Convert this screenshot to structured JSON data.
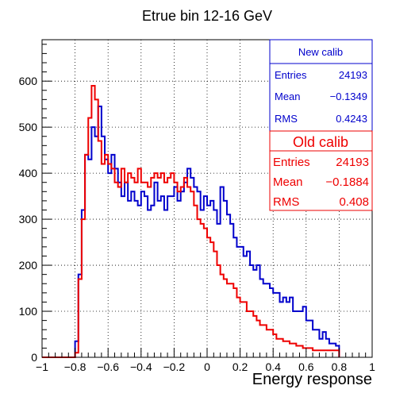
{
  "chart_data": {
    "type": "histogram",
    "title": "Etrue bin 12-16 GeV",
    "xlabel": "Energy response",
    "ylabel": "",
    "xlim": [
      -1,
      1
    ],
    "ylim": [
      0,
      690
    ],
    "grid": true,
    "x_ticks": [
      "−1",
      "−0.8",
      "−0.6",
      "−0.4",
      "−0.2",
      "0",
      "0.2",
      "0.4",
      "0.6",
      "0.8",
      "1"
    ],
    "y_ticks": [
      "0",
      "100",
      "200",
      "300",
      "400",
      "500",
      "600"
    ],
    "bin_width": 0.02,
    "series": [
      {
        "name": "New calib",
        "color": "#0000cc",
        "stats": {
          "Entries": "24193",
          "Mean": "−0.1349",
          "RMS": "0.4243"
        },
        "values": [
          0,
          0,
          0,
          0,
          0,
          0,
          0,
          0,
          0,
          0,
          35,
          180,
          320,
          440,
          430,
          500,
          480,
          545,
          480,
          430,
          400,
          440,
          410,
          380,
          350,
          380,
          340,
          360,
          340,
          330,
          360,
          350,
          320,
          330,
          380,
          340,
          350,
          320,
          350,
          350,
          370,
          340,
          360,
          380,
          410,
          390,
          370,
          360,
          320,
          350,
          330,
          340,
          320,
          290,
          370,
          340,
          310,
          290,
          260,
          240,
          240,
          220,
          230,
          200,
          190,
          200,
          170,
          160,
          160,
          150,
          140,
          140,
          120,
          130,
          120,
          130,
          100,
          100,
          100,
          110,
          80,
          80,
          60,
          60,
          40,
          55,
          40,
          30,
          30,
          25
        ]
      },
      {
        "name": "Old calib",
        "color": "#ee0000",
        "stats": {
          "Entries": "24193",
          "Mean": "−0.1884",
          "RMS": "0.408"
        },
        "values": [
          0,
          0,
          0,
          0,
          0,
          0,
          0,
          0,
          0,
          0,
          10,
          170,
          300,
          440,
          520,
          590,
          560,
          470,
          420,
          440,
          420,
          410,
          380,
          370,
          410,
          380,
          400,
          390,
          380,
          410,
          380,
          380,
          370,
          390,
          400,
          390,
          400,
          380,
          390,
          400,
          380,
          360,
          370,
          390,
          370,
          360,
          330,
          300,
          290,
          280,
          260,
          250,
          230,
          200,
          180,
          170,
          160,
          160,
          150,
          130,
          120,
          120,
          100,
          100,
          90,
          80,
          70,
          70,
          60,
          60,
          50,
          40,
          40,
          35,
          35,
          30,
          30,
          25,
          25,
          20,
          20,
          20,
          15,
          15,
          15,
          15,
          15,
          15,
          15,
          15
        ]
      }
    ]
  },
  "stats_box_new": {
    "title": "New calib",
    "entries_label": "Entries",
    "entries_value": "24193",
    "mean_label": "Mean",
    "mean_value": "−0.1349",
    "rms_label": "RMS",
    "rms_value": "0.4243"
  },
  "stats_box_old": {
    "title": "Old calib",
    "entries_label": "Entries",
    "entries_value": "24193",
    "mean_label": "Mean",
    "mean_value": "−0.1884",
    "rms_label": "RMS",
    "rms_value": "0.408"
  }
}
